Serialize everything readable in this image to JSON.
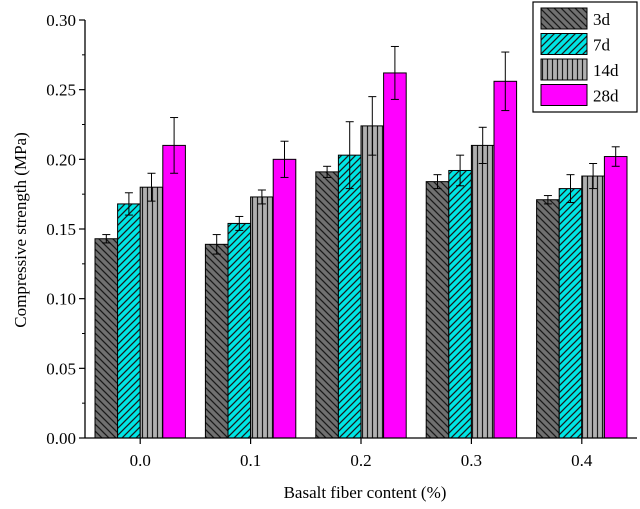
{
  "chart_data": {
    "type": "bar",
    "xlabel": "Basalt fiber content (%)",
    "ylabel": "Compressive strength (MPa)",
    "ylim": [
      0,
      0.3
    ],
    "yticks": [
      "0.00",
      "0.05",
      "0.10",
      "0.15",
      "0.20",
      "0.25",
      "0.30"
    ],
    "categories": [
      "0.0",
      "0.1",
      "0.2",
      "0.3",
      "0.4"
    ],
    "legend_position": "top-right",
    "series": [
      {
        "name": "3d",
        "values": [
          0.143,
          0.139,
          0.191,
          0.184,
          0.171
        ],
        "errors": [
          0.003,
          0.007,
          0.004,
          0.005,
          0.003
        ],
        "color": "#707070",
        "pattern": "diagonal-back"
      },
      {
        "name": "7d",
        "values": [
          0.168,
          0.154,
          0.203,
          0.192,
          0.179
        ],
        "errors": [
          0.008,
          0.005,
          0.024,
          0.011,
          0.01
        ],
        "color": "#00e5e5",
        "pattern": "diagonal-forward"
      },
      {
        "name": "14d",
        "values": [
          0.18,
          0.173,
          0.224,
          0.21,
          0.188
        ],
        "errors": [
          0.01,
          0.005,
          0.021,
          0.013,
          0.009
        ],
        "color": "#b0b0b0",
        "pattern": "vertical"
      },
      {
        "name": "28d",
        "values": [
          0.21,
          0.2,
          0.262,
          0.256,
          0.202
        ],
        "errors": [
          0.02,
          0.013,
          0.019,
          0.021,
          0.007
        ],
        "color": "#ff00ff",
        "pattern": "solid"
      }
    ]
  }
}
